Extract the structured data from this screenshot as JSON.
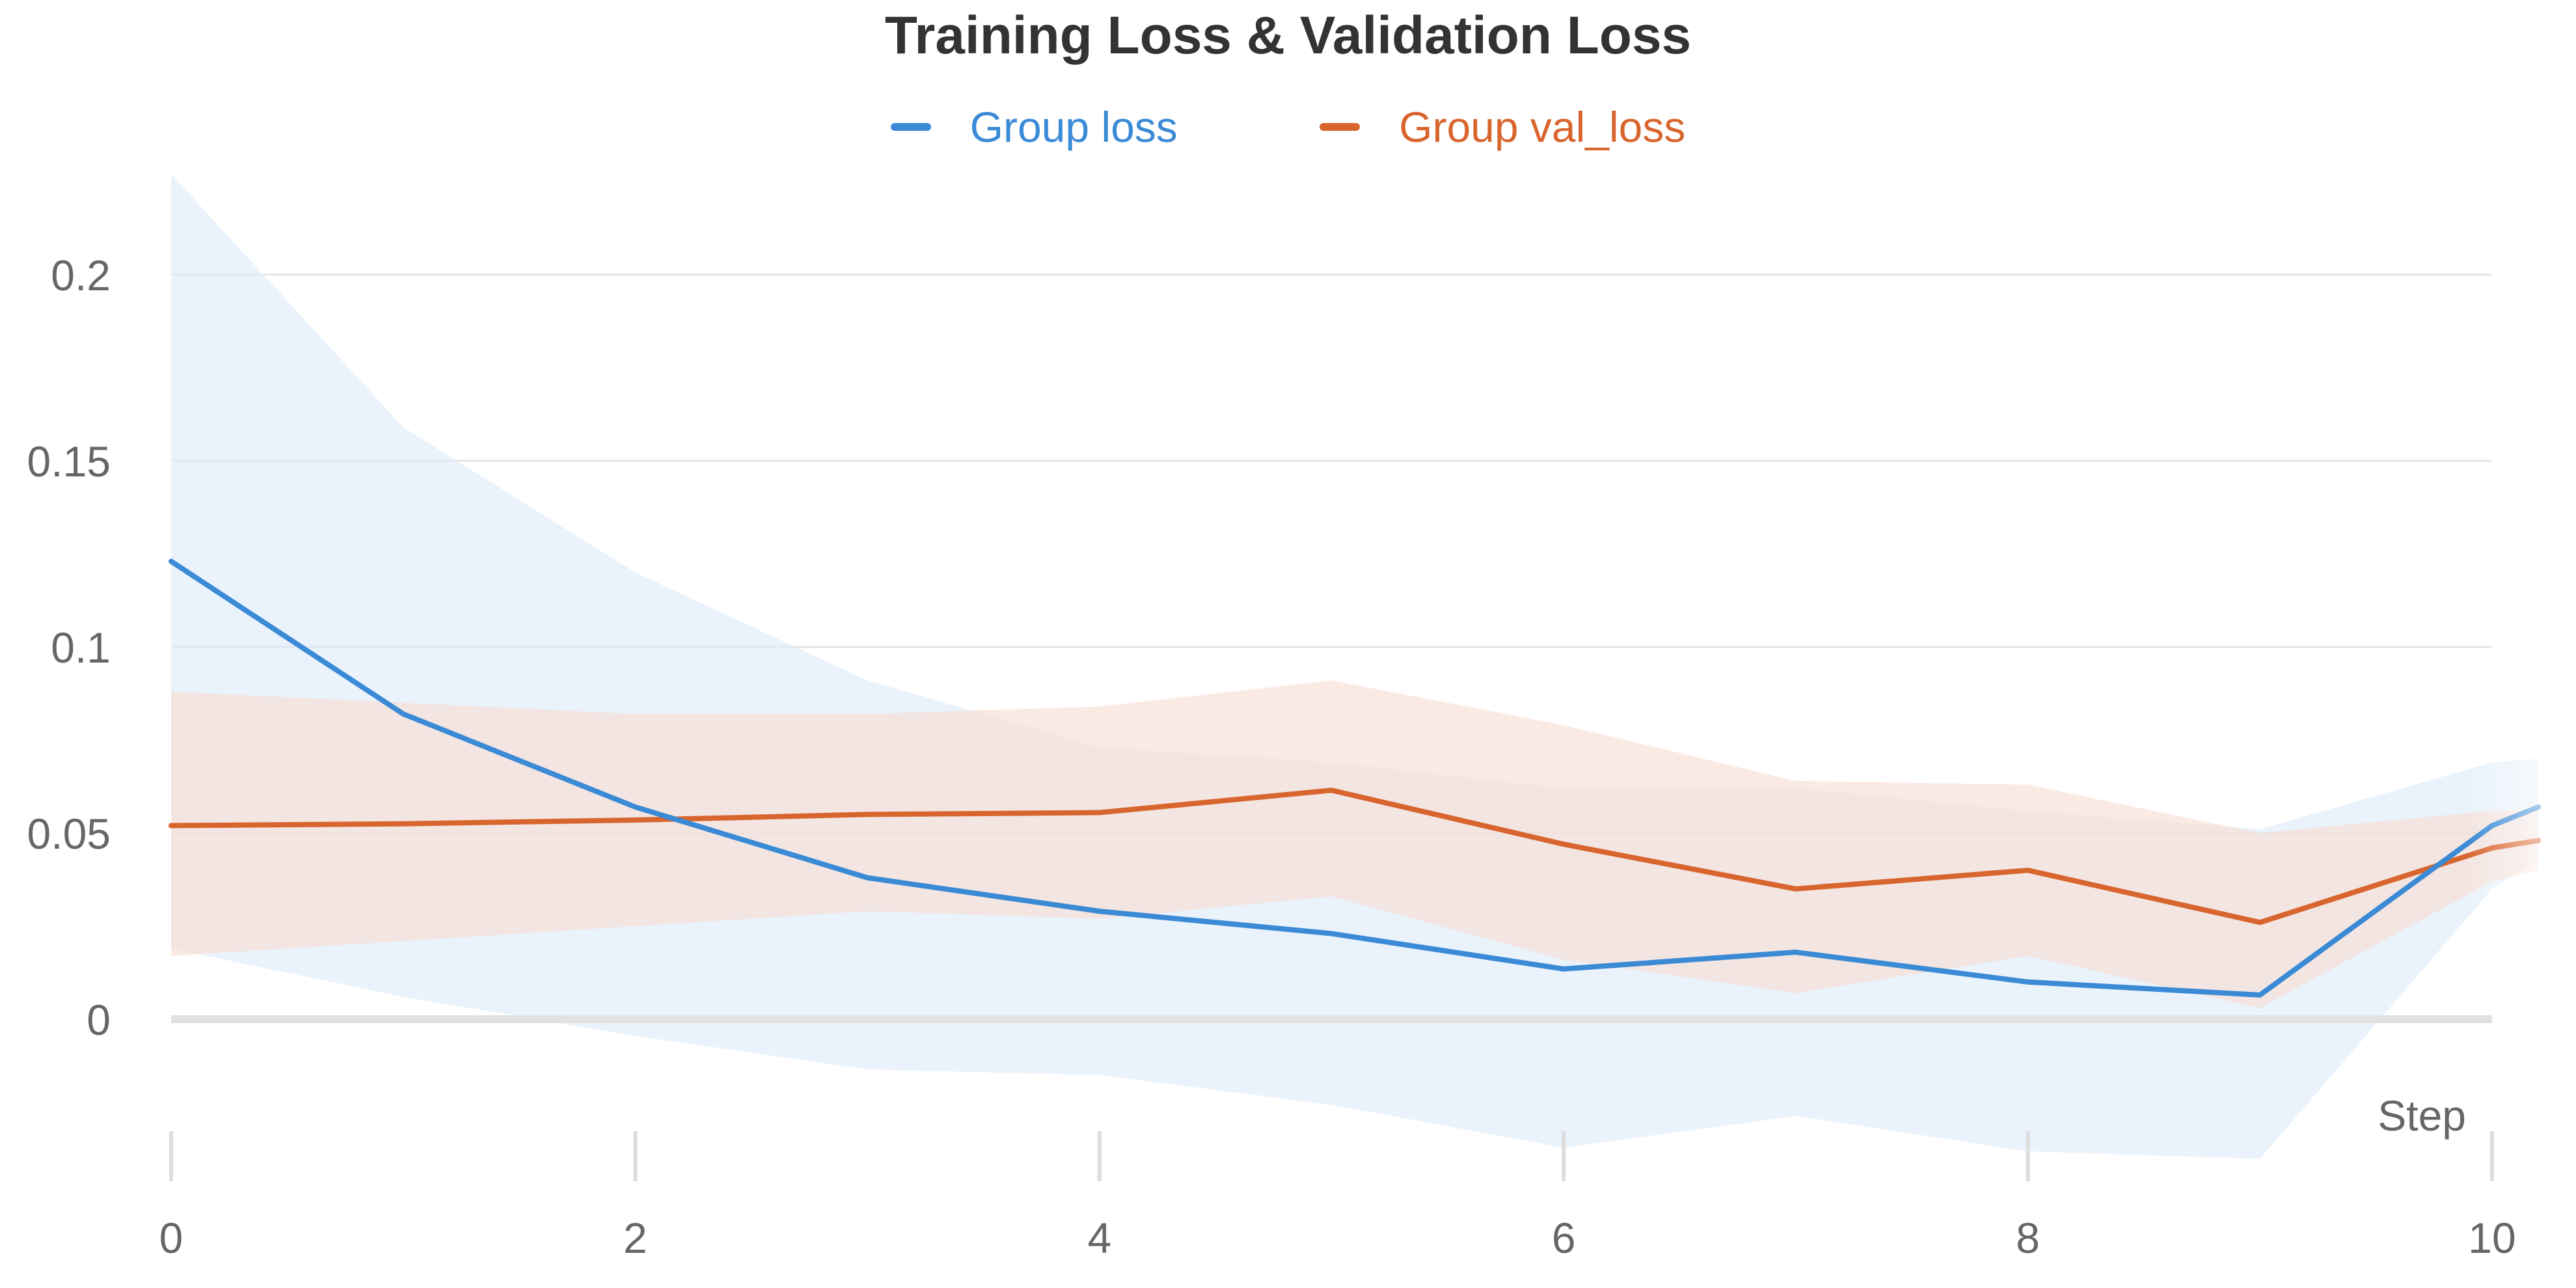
{
  "title": "Training Loss & Validation Loss",
  "legend": [
    {
      "label": "Group loss",
      "color": "#3a8ad6"
    },
    {
      "label": "Group val_loss",
      "color": "#d9652e"
    }
  ],
  "chart_data": {
    "type": "line",
    "title": "Training Loss & Validation Loss",
    "xlabel": "Step",
    "ylabel": "",
    "xlim": [
      0,
      10
    ],
    "ylim": [
      -0.04,
      0.23
    ],
    "x_ticks": [
      "0",
      "2",
      "4",
      "6",
      "8",
      "10"
    ],
    "y_ticks": [
      "0",
      "0.05",
      "0.1",
      "0.15",
      "0.2"
    ],
    "grid": true,
    "legend_position": "top-center",
    "x": [
      0,
      1,
      2,
      3,
      4,
      5,
      6,
      7,
      8,
      9,
      10,
      10.2
    ],
    "series": [
      {
        "name": "Group loss",
        "color": "#3a8ad6",
        "band_color": "#dce9f8",
        "values": [
          0.123,
          0.082,
          0.057,
          0.038,
          0.029,
          0.023,
          0.0135,
          0.018,
          0.01,
          0.0065,
          0.052,
          0.057
        ],
        "upper": [
          0.227,
          0.159,
          0.12,
          0.091,
          0.073,
          0.069,
          0.062,
          0.062,
          0.056,
          0.051,
          0.069,
          0.07
        ],
        "lower": [
          0.019,
          0.006,
          -0.0045,
          -0.0135,
          -0.015,
          -0.023,
          -0.0345,
          -0.026,
          -0.0355,
          -0.0375,
          0.035,
          0.043
        ]
      },
      {
        "name": "Group val_loss",
        "color": "#d9652e",
        "band_color": "#f9dcd0",
        "values": [
          0.052,
          0.0525,
          0.0535,
          0.055,
          0.0555,
          0.0615,
          0.047,
          0.035,
          0.04,
          0.026,
          0.046,
          0.048
        ],
        "upper": [
          0.088,
          0.085,
          0.082,
          0.082,
          0.084,
          0.091,
          0.079,
          0.064,
          0.063,
          0.05,
          0.056,
          0.056
        ],
        "lower": [
          0.017,
          0.021,
          0.025,
          0.029,
          0.027,
          0.033,
          0.016,
          0.007,
          0.017,
          0.003,
          0.037,
          0.04
        ]
      }
    ]
  }
}
